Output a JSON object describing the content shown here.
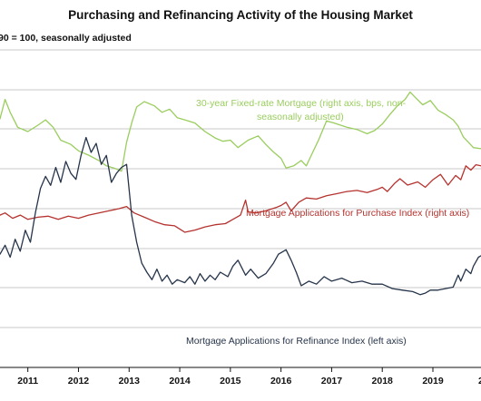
{
  "chart_data": {
    "type": "line",
    "title": "Purchasing and Refinancing Activity of the Housing Market",
    "subtitle": "90 = 100, seasonally adjusted",
    "xlabel": "",
    "ylabel": "",
    "xlim": [
      2010.45,
      2019.95
    ],
    "x_ticks": [
      "2011",
      "2012",
      "2013",
      "2014",
      "2015",
      "2016",
      "2017",
      "2018",
      "2019",
      "20"
    ],
    "grid": true,
    "legend": "inline annotations",
    "annotations": [
      {
        "text": "30-year Fixed-rate Mortgage (right axis, bps, non-",
        "color": "#9acd5e"
      },
      {
        "text": "seasonally adjusted)",
        "color": "#9acd5e"
      },
      {
        "text": "Mortgage Applications for Purchase Index (right axis)",
        "color": "#b5322e"
      },
      {
        "text": "Mortgage Applications for Refinance Index (left axis)",
        "color": "#26344a"
      }
    ],
    "series": [
      {
        "color": "#9acd5e",
        "axis": "right",
        "points": [
          [
            2010.45,
            84
          ],
          [
            2010.55,
            102
          ],
          [
            2010.65,
            90
          ],
          [
            2010.8,
            76
          ],
          [
            2011.0,
            72
          ],
          [
            2011.2,
            78
          ],
          [
            2011.35,
            83
          ],
          [
            2011.5,
            76
          ],
          [
            2011.65,
            64
          ],
          [
            2011.85,
            60
          ],
          [
            2012.0,
            54
          ],
          [
            2012.2,
            50
          ],
          [
            2012.4,
            45
          ],
          [
            2012.55,
            40
          ],
          [
            2012.7,
            38
          ],
          [
            2012.85,
            35
          ],
          [
            2012.95,
            62
          ],
          [
            2013.05,
            80
          ],
          [
            2013.15,
            95
          ],
          [
            2013.3,
            100
          ],
          [
            2013.5,
            96
          ],
          [
            2013.65,
            90
          ],
          [
            2013.8,
            93
          ],
          [
            2013.95,
            85
          ],
          [
            2014.1,
            83
          ],
          [
            2014.3,
            80
          ],
          [
            2014.5,
            72
          ],
          [
            2014.7,
            66
          ],
          [
            2014.85,
            63
          ],
          [
            2015.0,
            64
          ],
          [
            2015.15,
            57
          ],
          [
            2015.35,
            64
          ],
          [
            2015.55,
            68
          ],
          [
            2015.7,
            60
          ],
          [
            2015.85,
            53
          ],
          [
            2016.0,
            47
          ],
          [
            2016.1,
            38
          ],
          [
            2016.25,
            40
          ],
          [
            2016.4,
            45
          ],
          [
            2016.5,
            40
          ],
          [
            2016.6,
            50
          ],
          [
            2016.75,
            65
          ],
          [
            2016.9,
            82
          ],
          [
            2017.05,
            80
          ],
          [
            2017.3,
            76
          ],
          [
            2017.5,
            74
          ],
          [
            2017.7,
            70
          ],
          [
            2017.85,
            73
          ],
          [
            2018.0,
            79
          ],
          [
            2018.15,
            88
          ],
          [
            2018.3,
            96
          ],
          [
            2018.45,
            102
          ],
          [
            2018.55,
            109
          ],
          [
            2018.65,
            104
          ],
          [
            2018.8,
            97
          ],
          [
            2018.95,
            101
          ],
          [
            2019.1,
            92
          ],
          [
            2019.25,
            88
          ],
          [
            2019.4,
            83
          ],
          [
            2019.5,
            77
          ],
          [
            2019.6,
            67
          ],
          [
            2019.7,
            62
          ],
          [
            2019.8,
            57
          ],
          [
            2019.95,
            56
          ]
        ]
      },
      {
        "color": "#b5322e",
        "axis": "right",
        "points": [
          [
            2010.45,
            -6
          ],
          [
            2010.55,
            -4
          ],
          [
            2010.7,
            -9
          ],
          [
            2010.85,
            -6
          ],
          [
            2011.0,
            -10
          ],
          [
            2011.2,
            -8
          ],
          [
            2011.4,
            -7
          ],
          [
            2011.6,
            -10
          ],
          [
            2011.8,
            -7
          ],
          [
            2012.0,
            -9
          ],
          [
            2012.2,
            -6
          ],
          [
            2012.4,
            -4
          ],
          [
            2012.6,
            -2
          ],
          [
            2012.8,
            0
          ],
          [
            2012.95,
            2
          ],
          [
            2013.1,
            -4
          ],
          [
            2013.3,
            -8
          ],
          [
            2013.5,
            -12
          ],
          [
            2013.7,
            -15
          ],
          [
            2013.9,
            -16
          ],
          [
            2014.1,
            -22
          ],
          [
            2014.3,
            -20
          ],
          [
            2014.5,
            -17
          ],
          [
            2014.7,
            -15
          ],
          [
            2014.9,
            -14
          ],
          [
            2015.05,
            -10
          ],
          [
            2015.2,
            -6
          ],
          [
            2015.3,
            8
          ],
          [
            2015.35,
            -3
          ],
          [
            2015.5,
            -4
          ],
          [
            2015.7,
            -2
          ],
          [
            2015.9,
            1
          ],
          [
            2016.0,
            3
          ],
          [
            2016.1,
            6
          ],
          [
            2016.2,
            -2
          ],
          [
            2016.35,
            6
          ],
          [
            2016.5,
            10
          ],
          [
            2016.7,
            9
          ],
          [
            2016.9,
            12
          ],
          [
            2017.1,
            14
          ],
          [
            2017.3,
            16
          ],
          [
            2017.5,
            17
          ],
          [
            2017.7,
            15
          ],
          [
            2017.9,
            18
          ],
          [
            2018.0,
            20
          ],
          [
            2018.1,
            16
          ],
          [
            2018.25,
            24
          ],
          [
            2018.35,
            28
          ],
          [
            2018.5,
            22
          ],
          [
            2018.7,
            25
          ],
          [
            2018.85,
            20
          ],
          [
            2019.0,
            27
          ],
          [
            2019.15,
            32
          ],
          [
            2019.3,
            22
          ],
          [
            2019.45,
            31
          ],
          [
            2019.55,
            27
          ],
          [
            2019.65,
            40
          ],
          [
            2019.75,
            36
          ],
          [
            2019.85,
            41
          ],
          [
            2019.95,
            40
          ]
        ]
      },
      {
        "color": "#26344a",
        "axis": "left",
        "points": [
          [
            2010.45,
            12
          ],
          [
            2010.55,
            18
          ],
          [
            2010.65,
            10
          ],
          [
            2010.75,
            22
          ],
          [
            2010.85,
            14
          ],
          [
            2010.95,
            28
          ],
          [
            2011.05,
            20
          ],
          [
            2011.15,
            40
          ],
          [
            2011.25,
            56
          ],
          [
            2011.35,
            64
          ],
          [
            2011.45,
            58
          ],
          [
            2011.55,
            70
          ],
          [
            2011.65,
            60
          ],
          [
            2011.75,
            74
          ],
          [
            2011.85,
            66
          ],
          [
            2011.95,
            62
          ],
          [
            2012.05,
            78
          ],
          [
            2012.15,
            90
          ],
          [
            2012.25,
            80
          ],
          [
            2012.35,
            86
          ],
          [
            2012.45,
            72
          ],
          [
            2012.55,
            78
          ],
          [
            2012.65,
            60
          ],
          [
            2012.75,
            66
          ],
          [
            2012.85,
            70
          ],
          [
            2012.95,
            72
          ],
          [
            2013.05,
            38
          ],
          [
            2013.15,
            20
          ],
          [
            2013.25,
            6
          ],
          [
            2013.35,
            0
          ],
          [
            2013.45,
            -5
          ],
          [
            2013.55,
            2
          ],
          [
            2013.65,
            -6
          ],
          [
            2013.75,
            -2
          ],
          [
            2013.85,
            -8
          ],
          [
            2013.95,
            -5
          ],
          [
            2014.1,
            -7
          ],
          [
            2014.2,
            -3
          ],
          [
            2014.3,
            -8
          ],
          [
            2014.4,
            -1
          ],
          [
            2014.5,
            -6
          ],
          [
            2014.6,
            -2
          ],
          [
            2014.7,
            -5
          ],
          [
            2014.8,
            0
          ],
          [
            2014.95,
            -3
          ],
          [
            2015.05,
            4
          ],
          [
            2015.15,
            8
          ],
          [
            2015.3,
            -2
          ],
          [
            2015.4,
            2
          ],
          [
            2015.55,
            -4
          ],
          [
            2015.7,
            -1
          ],
          [
            2015.85,
            6
          ],
          [
            2015.95,
            12
          ],
          [
            2016.1,
            15
          ],
          [
            2016.2,
            8
          ],
          [
            2016.3,
            0
          ],
          [
            2016.4,
            -9
          ],
          [
            2016.55,
            -6
          ],
          [
            2016.7,
            -8
          ],
          [
            2016.85,
            -3
          ],
          [
            2017.0,
            -6
          ],
          [
            2017.2,
            -4
          ],
          [
            2017.4,
            -7
          ],
          [
            2017.6,
            -6
          ],
          [
            2017.8,
            -8
          ],
          [
            2018.0,
            -8
          ],
          [
            2018.2,
            -11
          ],
          [
            2018.4,
            -12
          ],
          [
            2018.6,
            -13
          ],
          [
            2018.75,
            -15
          ],
          [
            2018.85,
            -14
          ],
          [
            2018.95,
            -12
          ],
          [
            2019.1,
            -12
          ],
          [
            2019.25,
            -11
          ],
          [
            2019.4,
            -10
          ],
          [
            2019.5,
            -2
          ],
          [
            2019.55,
            -6
          ],
          [
            2019.65,
            2
          ],
          [
            2019.75,
            -1
          ],
          [
            2019.8,
            4
          ],
          [
            2019.9,
            10
          ],
          [
            2019.95,
            11
          ]
        ]
      }
    ]
  }
}
